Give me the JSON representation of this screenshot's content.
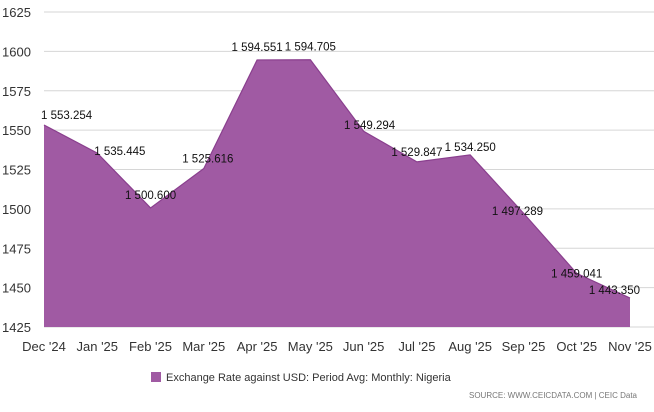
{
  "chart_data": {
    "type": "area",
    "title": "",
    "xlabel": "",
    "ylabel": "",
    "categories": [
      "Dec '24",
      "Jan '25",
      "Feb '25",
      "Mar '25",
      "Apr '25",
      "May '25",
      "Jun '25",
      "Jul '25",
      "Aug '25",
      "Sep '25",
      "Oct '25",
      "Nov '25"
    ],
    "series": [
      {
        "name": "Exchange Rate against USD: Period Avg: Monthly: Nigeria",
        "values": [
          1553.254,
          1535.445,
          1500.6,
          1525.616,
          1594.551,
          1594.705,
          1549.294,
          1529.847,
          1534.25,
          1497.289,
          1459.041,
          1443.35
        ],
        "data_labels": [
          "1 553.254",
          "1 535.445",
          "1 500.600",
          "1 525.616",
          "1 594.551",
          "1 594.705",
          "1 549.294",
          "1 529.847",
          "1 534.250",
          "1 497.289",
          "1 459.041",
          "1 443.350"
        ],
        "color": "#a05aa3"
      }
    ],
    "ylim": [
      1425,
      1625
    ],
    "yticks": [
      1425,
      1450,
      1475,
      1500,
      1525,
      1550,
      1575,
      1600,
      1625
    ],
    "grid": true,
    "legend_position": "bottom",
    "source": "SOURCE: WWW.CEICDATA.COM | CEIC Data"
  }
}
